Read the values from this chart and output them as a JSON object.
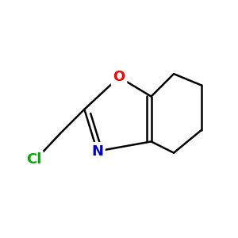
{
  "background_color": "#ffffff",
  "bond_color": "#000000",
  "o_color": "#ff0000",
  "n_color": "#0000cc",
  "cl_color": "#00aa00",
  "o_label": "O",
  "n_label": "N",
  "cl_label": "Cl",
  "line_width": 1.8,
  "font_size": 13
}
